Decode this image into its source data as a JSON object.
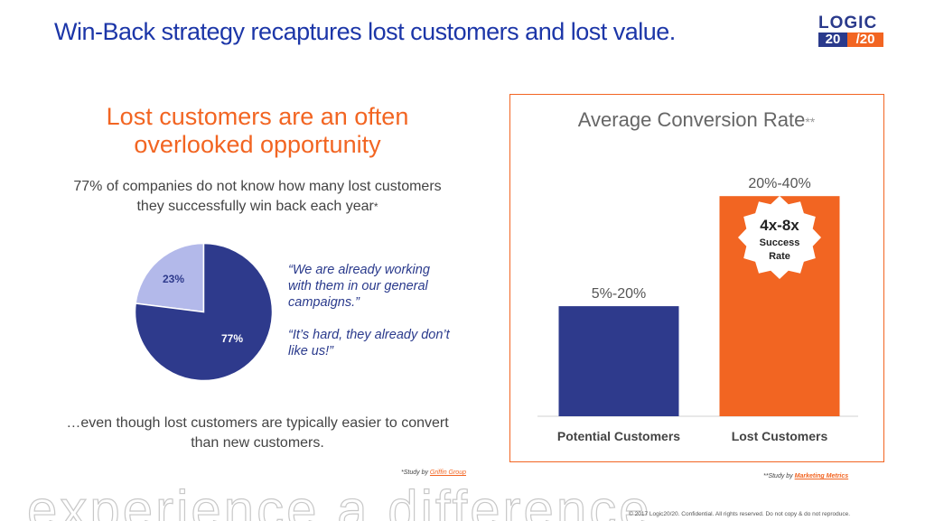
{
  "title": "Win-Back strategy recaptures lost customers and lost value.",
  "logo": {
    "top": "LOGIC",
    "bottom_left": "20",
    "bottom_right": "/20"
  },
  "left": {
    "headline": "Lost customers are an often overlooked opportunity",
    "subtext": "77% of companies do not know how many lost customers they successfully win back each year",
    "subtext_asterisk": "*",
    "pie": {
      "slices": [
        {
          "label": "23%",
          "value": 23,
          "color": "#b3b9ea"
        },
        {
          "label": "77%",
          "value": 77,
          "color": "#2e3a8c"
        }
      ]
    },
    "quote1": "“We are already working with them in our general campaigns.”",
    "quote2": "“It’s hard, they already don’t like us!”",
    "bottom": "…even though lost customers are typically easier to convert than new customers.",
    "study_prefix": "*Study by ",
    "study_link": "Griffin Group"
  },
  "chart_data": {
    "type": "bar",
    "title": "Average Conversion Rate",
    "title_suffix": "**",
    "categories": [
      "Potential Customers",
      "Lost Customers"
    ],
    "value_labels": [
      "5%-20%",
      "20%-40%"
    ],
    "values": [
      20,
      40
    ],
    "colors": [
      "#2e3a8c",
      "#f26522"
    ],
    "ylim": [
      0,
      42
    ],
    "badge": {
      "big": "4x-8x",
      "line1": "Success",
      "line2": "Rate"
    }
  },
  "study2_prefix": "**Study by ",
  "study2_link": "Marketing Metrics",
  "watermark": "experience a difference",
  "copyright": "© 2017 Logic20/20. Confidential. All rights reserved. Do not copy & do not reproduce."
}
